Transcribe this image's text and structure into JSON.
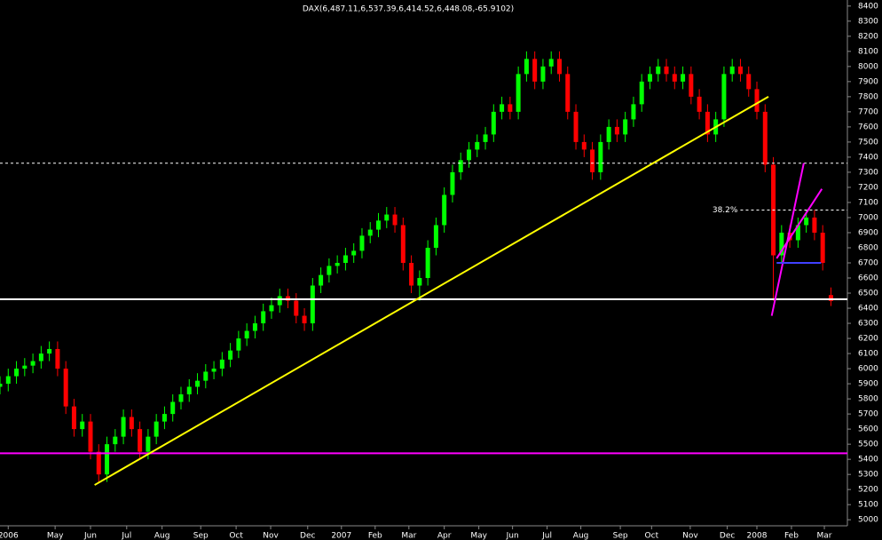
{
  "chart_data": {
    "type": "candlestick",
    "title": "DAX(6,487.11,6,537.39,6,414.52,6,448.08,-65.9102)",
    "x": [
      0,
      1,
      2,
      3,
      4,
      5,
      6,
      7,
      8,
      9,
      10,
      11,
      12,
      13,
      14,
      15,
      16,
      17,
      18,
      19,
      20,
      21,
      22,
      23,
      24,
      25,
      26,
      27,
      28,
      29,
      30,
      31,
      32,
      33,
      34,
      35,
      36,
      37,
      38,
      39,
      40,
      41,
      42,
      43,
      44,
      45,
      46,
      47,
      48,
      49,
      50,
      51,
      52,
      53,
      54,
      55,
      56,
      57,
      58,
      59,
      60,
      61,
      62,
      63,
      64,
      65,
      66,
      67,
      68,
      69,
      70,
      71,
      72,
      73,
      74,
      75,
      76,
      77,
      78,
      79,
      80,
      81,
      82,
      83,
      84,
      85,
      86,
      87,
      88,
      89,
      90,
      91,
      92,
      93,
      94,
      95,
      96,
      97,
      98,
      99,
      100,
      101
    ],
    "open": [
      5880,
      5900,
      5950,
      6000,
      6020,
      6050,
      6100,
      6130,
      6000,
      5750,
      5600,
      5650,
      5450,
      5300,
      5500,
      5550,
      5680,
      5600,
      5450,
      5550,
      5650,
      5700,
      5780,
      5830,
      5880,
      5920,
      5980,
      6000,
      6060,
      6120,
      6200,
      6250,
      6300,
      6380,
      6420,
      6480,
      6450,
      6350,
      6300,
      6550,
      6620,
      6680,
      6700,
      6750,
      6780,
      6880,
      6920,
      6980,
      7020,
      6950,
      6700,
      6550,
      6600,
      6800,
      6950,
      7150,
      7300,
      7380,
      7450,
      7500,
      7550,
      7700,
      7750,
      7700,
      7950,
      8050,
      7900,
      8000,
      8050,
      7950,
      7700,
      7500,
      7450,
      7300,
      7500,
      7600,
      7550,
      7650,
      7750,
      7900,
      7950,
      8000,
      7950,
      7900,
      7950,
      7800,
      7700,
      7550,
      7650,
      7950,
      8000,
      7950,
      7850,
      7700,
      7350,
      6750,
      6900,
      6850,
      6950,
      7000,
      6900,
      6487.11
    ],
    "high": [
      5950,
      6000,
      6050,
      6070,
      6100,
      6150,
      6180,
      6180,
      6050,
      5800,
      5700,
      5700,
      5500,
      5550,
      5600,
      5730,
      5730,
      5650,
      5600,
      5700,
      5750,
      5830,
      5880,
      5930,
      5970,
      6030,
      6050,
      6110,
      6170,
      6250,
      6300,
      6350,
      6430,
      6470,
      6530,
      6530,
      6500,
      6400,
      6600,
      6670,
      6730,
      6750,
      6800,
      6830,
      6930,
      6970,
      7030,
      7070,
      7070,
      7000,
      6750,
      6650,
      6850,
      7000,
      7200,
      7350,
      7430,
      7500,
      7550,
      7600,
      7750,
      7800,
      7800,
      8000,
      8100,
      8100,
      8050,
      8100,
      8100,
      8000,
      7750,
      7550,
      7500,
      7550,
      7650,
      7650,
      7700,
      7800,
      7950,
      8000,
      8050,
      8050,
      8000,
      8000,
      8000,
      7850,
      7750,
      7700,
      8000,
      8050,
      8050,
      8000,
      7900,
      7750,
      7400,
      6950,
      6950,
      7000,
      7050,
      7050,
      6950,
      6537.39
    ],
    "low": [
      5830,
      5850,
      5900,
      5950,
      5970,
      6000,
      6050,
      5950,
      5700,
      5550,
      5550,
      5400,
      5250,
      5250,
      5450,
      5500,
      5550,
      5400,
      5400,
      5500,
      5600,
      5650,
      5730,
      5780,
      5830,
      5870,
      5930,
      5950,
      6010,
      6070,
      6150,
      6200,
      6250,
      6330,
      6370,
      6400,
      6300,
      6250,
      6250,
      6500,
      6570,
      6630,
      6650,
      6700,
      6730,
      6830,
      6870,
      6930,
      6900,
      6650,
      6500,
      6450,
      6550,
      6750,
      6900,
      7100,
      7250,
      7330,
      7400,
      7450,
      7500,
      7650,
      7650,
      7650,
      7900,
      7850,
      7850,
      7950,
      7900,
      7650,
      7450,
      7400,
      7250,
      7250,
      7450,
      7500,
      7500,
      7600,
      7700,
      7850,
      7900,
      7900,
      7850,
      7850,
      7750,
      7650,
      7500,
      7500,
      7600,
      7900,
      7900,
      7800,
      7650,
      7300,
      6450,
      6700,
      6800,
      6800,
      6900,
      6850,
      6650,
      6414.52
    ],
    "close": [
      5900,
      5950,
      6000,
      6020,
      6050,
      6100,
      6130,
      6000,
      5750,
      5600,
      5650,
      5450,
      5300,
      5500,
      5550,
      5680,
      5600,
      5450,
      5550,
      5650,
      5700,
      5780,
      5830,
      5880,
      5920,
      5980,
      6000,
      6060,
      6120,
      6200,
      6250,
      6300,
      6380,
      6420,
      6480,
      6450,
      6350,
      6300,
      6550,
      6620,
      6680,
      6700,
      6750,
      6780,
      6880,
      6920,
      6980,
      7020,
      6950,
      6700,
      6550,
      6600,
      6800,
      6950,
      7150,
      7300,
      7380,
      7450,
      7500,
      7550,
      7700,
      7750,
      7700,
      7950,
      8050,
      7900,
      8000,
      8050,
      7950,
      7700,
      7500,
      7450,
      7300,
      7500,
      7600,
      7550,
      7650,
      7750,
      7900,
      7950,
      8000,
      7950,
      7900,
      7950,
      7800,
      7700,
      7550,
      7650,
      7950,
      8000,
      7950,
      7850,
      7700,
      7350,
      6750,
      6900,
      6850,
      6950,
      7000,
      6900,
      6700,
      6448.08
    ],
    "up_color": "#00ff00",
    "down_color": "#ff0000",
    "xlim": [
      0,
      103
    ],
    "xticks": [
      {
        "value": 1,
        "label": "2006"
      },
      {
        "value": 6.7,
        "label": "May"
      },
      {
        "value": 11,
        "label": "Jun"
      },
      {
        "value": 15.4,
        "label": "Jul"
      },
      {
        "value": 19.7,
        "label": "Aug"
      },
      {
        "value": 24.4,
        "label": "Sep"
      },
      {
        "value": 28.7,
        "label": "Oct"
      },
      {
        "value": 32.9,
        "label": "Nov"
      },
      {
        "value": 37.4,
        "label": "Dec"
      },
      {
        "value": 41.5,
        "label": "2007"
      },
      {
        "value": 45.6,
        "label": "Feb"
      },
      {
        "value": 49.7,
        "label": "Mar"
      },
      {
        "value": 54,
        "label": "Apr"
      },
      {
        "value": 58.2,
        "label": "May"
      },
      {
        "value": 62.3,
        "label": "Jun"
      },
      {
        "value": 66.5,
        "label": "Jul"
      },
      {
        "value": 70.6,
        "label": "Aug"
      },
      {
        "value": 75.4,
        "label": "Sep"
      },
      {
        "value": 79.2,
        "label": "Oct"
      },
      {
        "value": 83.9,
        "label": "Nov"
      },
      {
        "value": 88.4,
        "label": "Dec"
      },
      {
        "value": 92,
        "label": "2008"
      },
      {
        "value": 96.2,
        "label": "Feb"
      },
      {
        "value": 100.2,
        "label": "Mar"
      }
    ],
    "ylim": [
      4960,
      8440
    ],
    "yticks": [
      5000,
      5100,
      5200,
      5300,
      5400,
      5500,
      5600,
      5700,
      5800,
      5900,
      6000,
      6100,
      6200,
      6300,
      6400,
      6500,
      6600,
      6700,
      6800,
      6900,
      7000,
      7100,
      7200,
      7300,
      7400,
      7500,
      7600,
      7700,
      7800,
      7900,
      8000,
      8100,
      8200,
      8300,
      8400
    ],
    "hlines": [
      {
        "value": 6460,
        "color": "#ffffff",
        "dashed": false
      },
      {
        "value": 5440,
        "color": "#ff00ff",
        "dashed": false
      },
      {
        "value": 7360,
        "color": "#ffffff",
        "dashed": true
      }
    ],
    "segments": [
      {
        "x": [
          11.5,
          93.4
        ],
        "y": [
          5230,
          7800
        ],
        "color": "#ffff00",
        "dashed": false
      },
      {
        "x": [
          90,
          103
        ],
        "y": [
          7050,
          7050
        ],
        "color": "#ffffff",
        "dashed": true,
        "label": "38.2%"
      },
      {
        "x": [
          93.8,
          97.7
        ],
        "y": [
          6350,
          7360
        ],
        "color": "#ff00ff",
        "dashed": false
      },
      {
        "x": [
          94.4,
          99.9
        ],
        "y": [
          6730,
          7190
        ],
        "color": "#ff00ff",
        "dashed": false
      },
      {
        "x": [
          94.4,
          99.8
        ],
        "y": [
          6700,
          6700
        ],
        "color": "#4040ff",
        "dashed": false
      }
    ]
  }
}
